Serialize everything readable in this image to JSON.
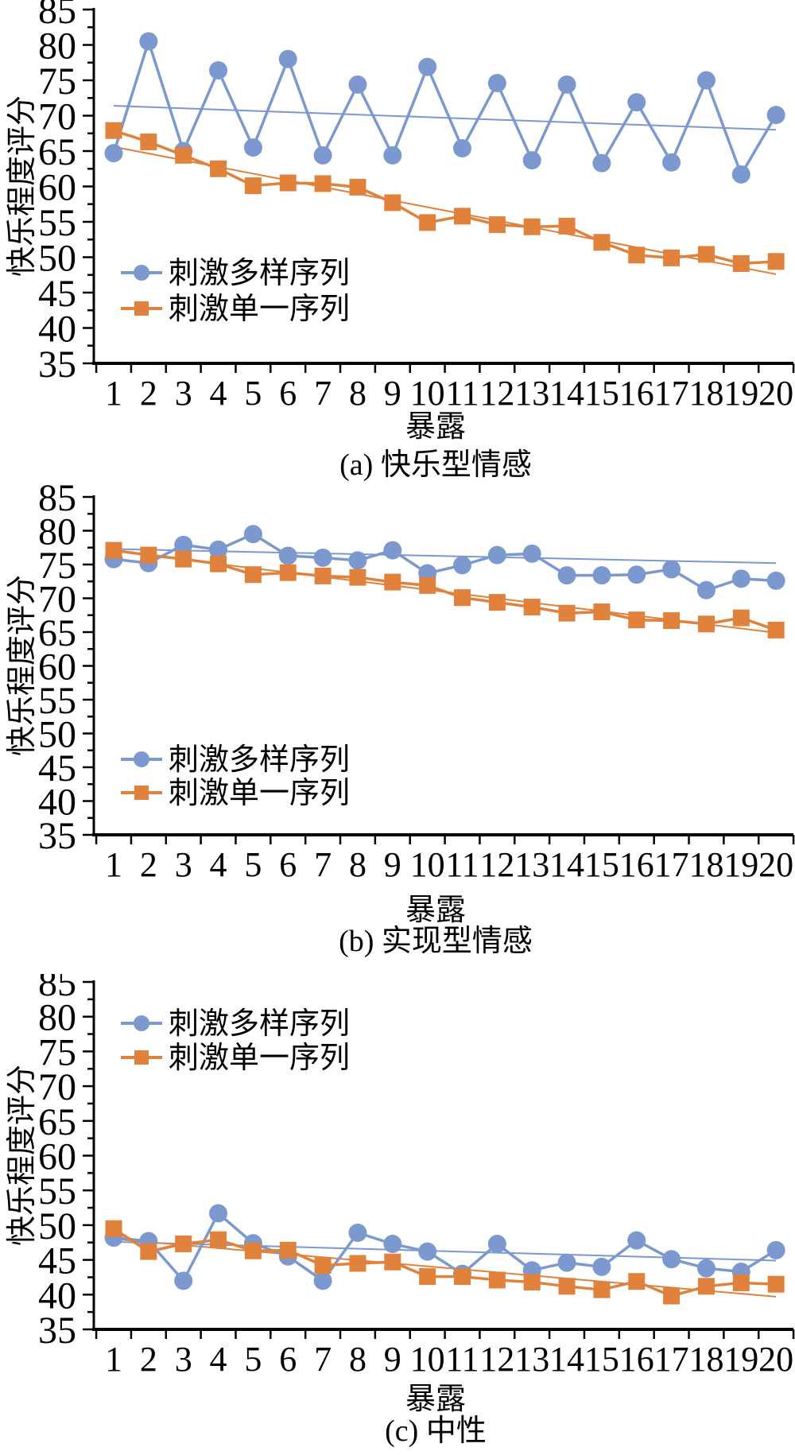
{
  "colors": {
    "varied_series": "#7B99CE",
    "single_series": "#E0813C",
    "axis": "#000000"
  },
  "legend": {
    "varied_label": "刺激多样序列",
    "single_label": "刺激单一序列"
  },
  "y_ticks": [
    85,
    80,
    75,
    70,
    65,
    60,
    55,
    50,
    45,
    40,
    35
  ],
  "x_ticks": [
    1,
    2,
    3,
    4,
    5,
    6,
    7,
    8,
    9,
    10,
    11,
    12,
    13,
    14,
    15,
    16,
    17,
    18,
    19,
    20
  ],
  "chart_data": [
    {
      "type": "line",
      "panel": "a",
      "title": "(a) 快乐型情感",
      "xlabel": "暴露",
      "ylabel": "快乐程度评分",
      "ylim": [
        35,
        85
      ],
      "grid": false,
      "legend_position": "lower-left",
      "x": [
        1,
        2,
        3,
        4,
        5,
        6,
        7,
        8,
        9,
        10,
        11,
        12,
        13,
        14,
        15,
        16,
        17,
        18,
        19,
        20
      ],
      "series": [
        {
          "key": "varied",
          "name": "刺激多样序列",
          "marker": "circle",
          "color": "#7B99CE",
          "values": [
            64.7,
            80.5,
            65.0,
            76.4,
            65.5,
            78.0,
            64.4,
            74.4,
            64.4,
            76.9,
            65.4,
            74.6,
            63.7,
            74.4,
            63.3,
            71.9,
            63.4,
            75.0,
            61.7,
            70.1
          ],
          "trend": [
            71.4,
            68.0
          ]
        },
        {
          "key": "single",
          "name": "刺激单一序列",
          "marker": "square",
          "color": "#E0813C",
          "values": [
            67.9,
            66.3,
            64.4,
            62.5,
            60.1,
            60.5,
            60.4,
            59.9,
            57.7,
            54.9,
            55.8,
            54.6,
            54.3,
            54.4,
            52.1,
            50.3,
            49.9,
            50.4,
            49.1,
            49.4
          ],
          "trend": [
            65.6,
            47.6
          ]
        }
      ]
    },
    {
      "type": "line",
      "panel": "b",
      "title": "(b) 实现型情感",
      "xlabel": "暴露",
      "ylabel": "快乐程度评分",
      "ylim": [
        35,
        85
      ],
      "grid": false,
      "legend_position": "lower-left",
      "x": [
        1,
        2,
        3,
        4,
        5,
        6,
        7,
        8,
        9,
        10,
        11,
        12,
        13,
        14,
        15,
        16,
        17,
        18,
        19,
        20
      ],
      "series": [
        {
          "key": "varied",
          "name": "刺激多样序列",
          "marker": "circle",
          "color": "#7B99CE",
          "values": [
            75.8,
            75.2,
            77.9,
            77.2,
            79.5,
            76.3,
            76.0,
            75.6,
            77.1,
            73.7,
            74.9,
            76.4,
            76.6,
            73.4,
            73.4,
            73.5,
            74.3,
            71.2,
            72.9,
            72.6
          ],
          "trend": [
            77.3,
            75.2
          ]
        },
        {
          "key": "single",
          "name": "刺激单一序列",
          "marker": "square",
          "color": "#E0813C",
          "values": [
            77.1,
            76.4,
            75.8,
            75.1,
            73.5,
            73.8,
            73.3,
            73.1,
            72.4,
            71.9,
            70.1,
            69.4,
            68.7,
            67.8,
            68.0,
            66.8,
            66.7,
            66.2,
            67.1,
            65.3
          ],
          "trend": [
            77.0,
            64.9
          ]
        }
      ]
    },
    {
      "type": "line",
      "panel": "c",
      "title": "(c) 中性",
      "xlabel": "暴露",
      "ylabel": "快乐程度评分",
      "ylim": [
        35,
        85
      ],
      "grid": false,
      "legend_position": "upper-left",
      "x": [
        1,
        2,
        3,
        4,
        5,
        6,
        7,
        8,
        9,
        10,
        11,
        12,
        13,
        14,
        15,
        16,
        17,
        18,
        19,
        20
      ],
      "series": [
        {
          "key": "varied",
          "name": "刺激多样序列",
          "marker": "circle",
          "color": "#7B99CE",
          "values": [
            48.2,
            47.7,
            42.0,
            51.7,
            47.4,
            45.5,
            42.0,
            48.9,
            47.3,
            46.2,
            43.0,
            47.3,
            43.5,
            44.6,
            44.0,
            47.8,
            45.1,
            43.8,
            43.3,
            46.4
          ],
          "trend": [
            47.6,
            44.9
          ]
        },
        {
          "key": "single",
          "name": "刺激单一序列",
          "marker": "square",
          "color": "#E0813C",
          "values": [
            49.5,
            46.2,
            47.3,
            47.9,
            46.3,
            46.4,
            44.2,
            44.5,
            44.7,
            42.6,
            42.6,
            42.1,
            41.8,
            41.2,
            40.7,
            41.9,
            39.8,
            41.2,
            41.7,
            41.5
          ],
          "trend": [
            48.0,
            39.7
          ]
        }
      ]
    }
  ]
}
